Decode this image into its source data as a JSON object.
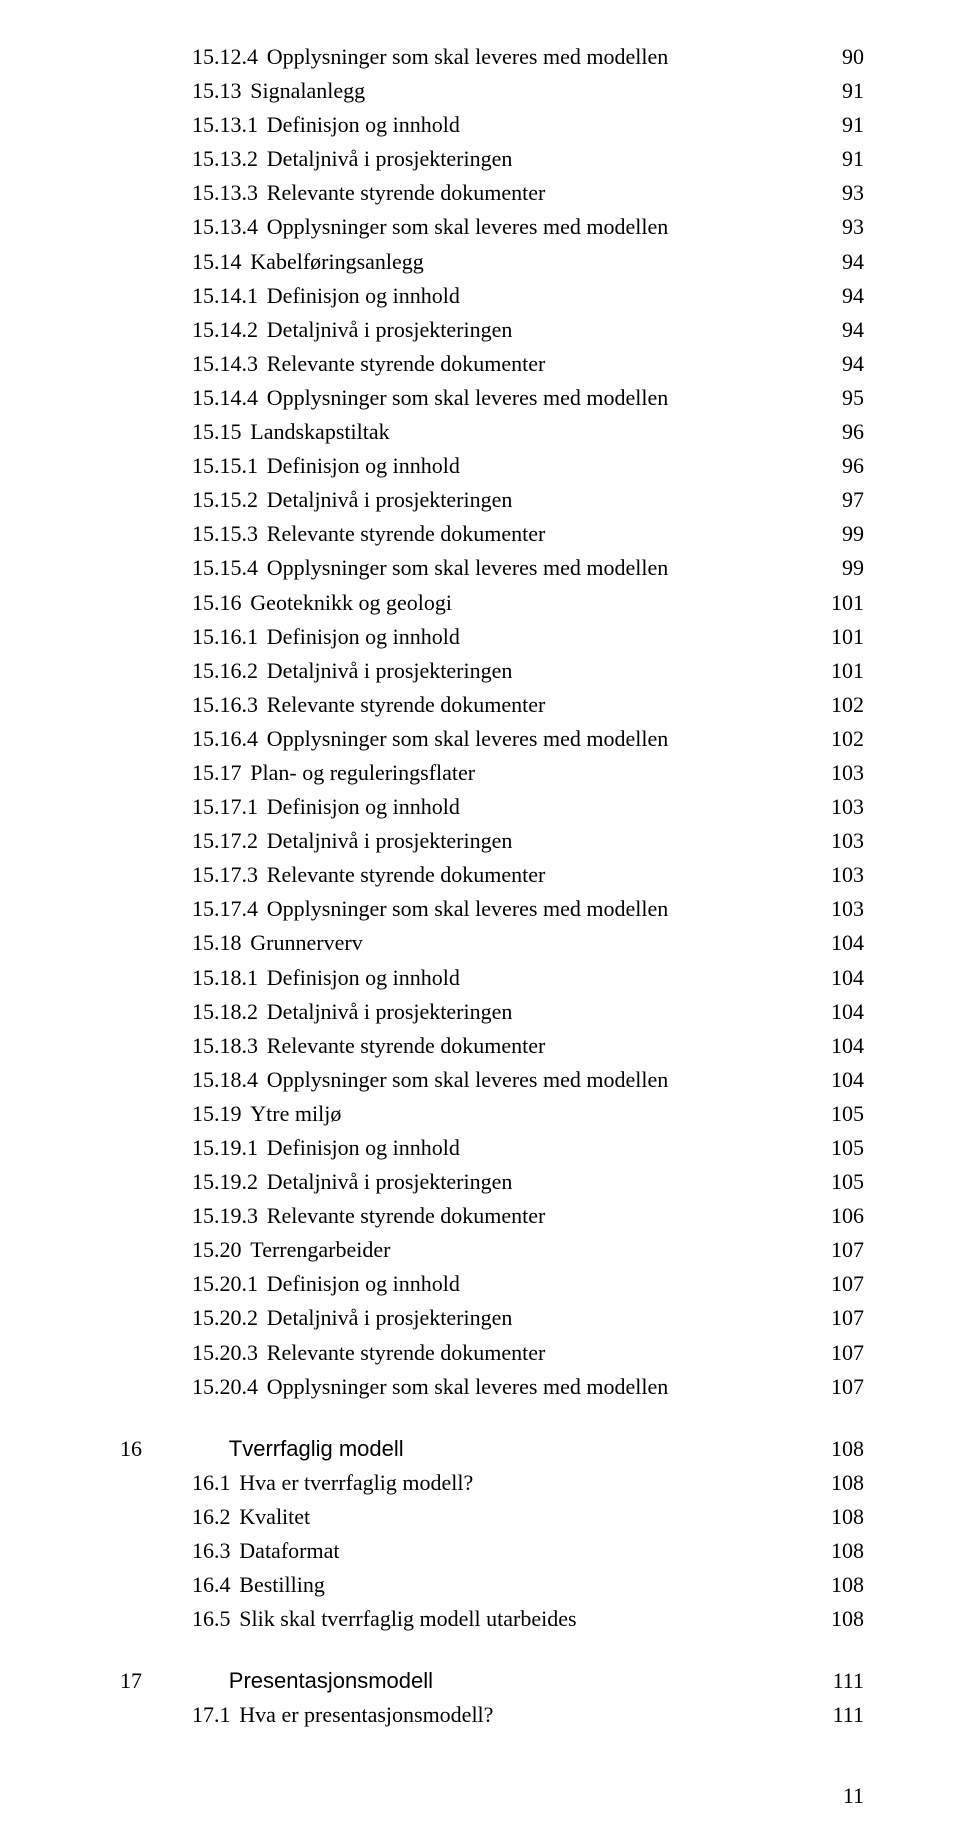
{
  "page_number": "11",
  "entries": [
    {
      "indent": 2,
      "num": "15.12.4",
      "title": "Opplysninger som skal leveres med modellen",
      "page": "90"
    },
    {
      "indent": 1,
      "num": "15.13",
      "title": "Signalanlegg",
      "page": "91"
    },
    {
      "indent": 2,
      "num": "15.13.1",
      "title": "Definisjon og innhold",
      "page": "91"
    },
    {
      "indent": 2,
      "num": "15.13.2",
      "title": "Detaljnivå i prosjekteringen",
      "page": "91"
    },
    {
      "indent": 2,
      "num": "15.13.3",
      "title": "Relevante styrende dokumenter",
      "page": "93"
    },
    {
      "indent": 2,
      "num": "15.13.4",
      "title": "Opplysninger som skal leveres med modellen",
      "page": "93"
    },
    {
      "indent": 1,
      "num": "15.14",
      "title": "Kabelføringsanlegg",
      "page": "94"
    },
    {
      "indent": 2,
      "num": "15.14.1",
      "title": "Definisjon og innhold",
      "page": "94"
    },
    {
      "indent": 2,
      "num": "15.14.2",
      "title": "Detaljnivå i prosjekteringen",
      "page": "94"
    },
    {
      "indent": 2,
      "num": "15.14.3",
      "title": "Relevante styrende dokumenter",
      "page": "94"
    },
    {
      "indent": 2,
      "num": "15.14.4",
      "title": "Opplysninger som skal leveres med modellen",
      "page": "95"
    },
    {
      "indent": 1,
      "num": "15.15",
      "title": "Landskapstiltak",
      "page": "96"
    },
    {
      "indent": 2,
      "num": "15.15.1",
      "title": "Definisjon og innhold",
      "page": "96"
    },
    {
      "indent": 2,
      "num": "15.15.2",
      "title": "Detaljnivå i prosjekteringen",
      "page": "97"
    },
    {
      "indent": 2,
      "num": "15.15.3",
      "title": "Relevante styrende dokumenter",
      "page": "99"
    },
    {
      "indent": 2,
      "num": "15.15.4",
      "title": "Opplysninger som skal leveres med modellen",
      "page": "99"
    },
    {
      "indent": 1,
      "num": "15.16",
      "title": "Geoteknikk og geologi",
      "page": "101"
    },
    {
      "indent": 2,
      "num": "15.16.1",
      "title": "Definisjon og innhold",
      "page": "101"
    },
    {
      "indent": 2,
      "num": "15.16.2",
      "title": "Detaljnivå i prosjekteringen",
      "page": "101"
    },
    {
      "indent": 2,
      "num": "15.16.3",
      "title": "Relevante styrende dokumenter",
      "page": "102"
    },
    {
      "indent": 2,
      "num": "15.16.4",
      "title": "Opplysninger som skal leveres med modellen",
      "page": "102"
    },
    {
      "indent": 1,
      "num": "15.17",
      "title": "Plan- og reguleringsflater",
      "page": "103"
    },
    {
      "indent": 2,
      "num": "15.17.1",
      "title": "Definisjon og innhold",
      "page": "103"
    },
    {
      "indent": 2,
      "num": "15.17.2",
      "title": "Detaljnivå i prosjekteringen",
      "page": "103"
    },
    {
      "indent": 2,
      "num": "15.17.3",
      "title": "Relevante styrende dokumenter",
      "page": "103"
    },
    {
      "indent": 2,
      "num": "15.17.4",
      "title": "Opplysninger som skal leveres med modellen",
      "page": "103"
    },
    {
      "indent": 1,
      "num": "15.18",
      "title": "Grunnerverv",
      "page": "104"
    },
    {
      "indent": 2,
      "num": "15.18.1",
      "title": "Definisjon og innhold",
      "page": "104"
    },
    {
      "indent": 2,
      "num": "15.18.2",
      "title": "Detaljnivå i prosjekteringen",
      "page": "104"
    },
    {
      "indent": 2,
      "num": "15.18.3",
      "title": "Relevante styrende dokumenter",
      "page": "104"
    },
    {
      "indent": 2,
      "num": "15.18.4",
      "title": "Opplysninger som skal leveres med modellen",
      "page": "104"
    },
    {
      "indent": 1,
      "num": "15.19",
      "title": "Ytre miljø",
      "page": "105"
    },
    {
      "indent": 2,
      "num": "15.19.1",
      "title": "Definisjon og innhold",
      "page": "105"
    },
    {
      "indent": 2,
      "num": "15.19.2",
      "title": "Detaljnivå i prosjekteringen",
      "page": "105"
    },
    {
      "indent": 2,
      "num": "15.19.3",
      "title": "Relevante styrende dokumenter",
      "page": "106"
    },
    {
      "indent": 1,
      "num": "15.20",
      "title": "Terrengarbeider",
      "page": "107"
    },
    {
      "indent": 2,
      "num": "15.20.1",
      "title": "Definisjon og innhold",
      "page": "107"
    },
    {
      "indent": 2,
      "num": "15.20.2",
      "title": "Detaljnivå i prosjekteringen",
      "page": "107"
    },
    {
      "indent": 2,
      "num": "15.20.3",
      "title": "Relevante styrende dokumenter",
      "page": "107"
    },
    {
      "indent": 2,
      "num": "15.20.4",
      "title": "Opplysninger som skal leveres med modellen",
      "page": "107"
    },
    {
      "indent": 0,
      "num": "16",
      "title": "Tverrfaglig modell",
      "page": "108",
      "chapter": true,
      "gap": true
    },
    {
      "indent": 1,
      "num": "16.1",
      "title": "Hva er tverrfaglig modell?",
      "page": "108"
    },
    {
      "indent": 1,
      "num": "16.2",
      "title": "Kvalitet",
      "page": "108"
    },
    {
      "indent": 1,
      "num": "16.3",
      "title": "Dataformat",
      "page": "108"
    },
    {
      "indent": 1,
      "num": "16.4",
      "title": "Bestilling",
      "page": "108"
    },
    {
      "indent": 1,
      "num": "16.5",
      "title": "Slik skal tverrfaglig modell utarbeides",
      "page": "108"
    },
    {
      "indent": 0,
      "num": "17",
      "title": "Presentasjonsmodell",
      "page": "111",
      "chapter": true,
      "gap": true
    },
    {
      "indent": 1,
      "num": "17.1",
      "title": "Hva er presentasjonsmodell?",
      "page": "111"
    }
  ]
}
